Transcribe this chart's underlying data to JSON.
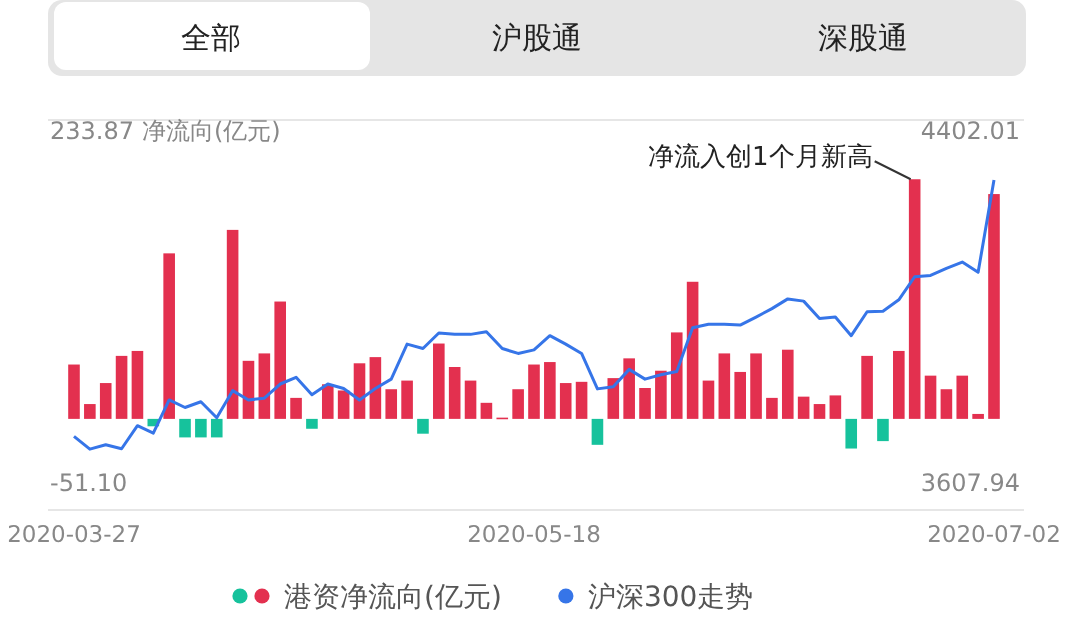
{
  "chart_data": {
    "type": "bar",
    "annotations": [
      "全部",
      "沪股通",
      "深股通",
      "净流入创1个月新高"
    ],
    "ylabel": "净流向(亿元)",
    "categories": [
      "2020-03-27",
      null,
      null,
      null,
      null,
      null,
      null,
      null,
      null,
      null,
      null,
      null,
      null,
      null,
      null,
      null,
      null,
      null,
      null,
      null,
      null,
      null,
      null,
      null,
      null,
      null,
      null,
      null,
      null,
      "2020-05-18",
      null,
      null,
      null,
      null,
      null,
      null,
      null,
      null,
      null,
      null,
      null,
      null,
      null,
      null,
      null,
      null,
      null,
      null,
      null,
      null,
      null,
      null,
      null,
      null,
      null,
      null,
      null,
      null,
      "2020-07-02"
    ],
    "series": [
      {
        "name": "港资净流向(亿元)",
        "values": [
          44,
          12,
          29,
          51,
          55,
          -6,
          134,
          -15,
          -15,
          -15,
          153,
          47,
          53,
          95,
          17,
          -8,
          28,
          23,
          45,
          50,
          24,
          31,
          -12,
          61,
          42,
          31,
          13,
          1,
          24,
          44,
          46,
          29,
          30,
          -21,
          33,
          49,
          25,
          39,
          70,
          111,
          31,
          53,
          38,
          53,
          17,
          56,
          18,
          12,
          19,
          -24,
          51,
          -18,
          55,
          194,
          35,
          24,
          35,
          4,
          182
        ],
        "colors": [
          "#e3304f",
          "#e3304f",
          "#e3304f",
          "#e3304f",
          "#e3304f",
          "#16c29c",
          "#e3304f",
          "#16c29c",
          "#16c29c",
          "#16c29c",
          "#e3304f",
          "#e3304f",
          "#e3304f",
          "#e3304f",
          "#e3304f",
          "#16c29c",
          "#e3304f",
          "#e3304f",
          "#e3304f",
          "#e3304f",
          "#e3304f",
          "#e3304f",
          "#16c29c",
          "#e3304f",
          "#e3304f",
          "#e3304f",
          "#e3304f",
          "#e3304f",
          "#e3304f",
          "#e3304f",
          "#e3304f",
          "#e3304f",
          "#e3304f",
          "#16c29c",
          "#e3304f",
          "#e3304f",
          "#e3304f",
          "#e3304f",
          "#e3304f",
          "#e3304f",
          "#e3304f",
          "#e3304f",
          "#e3304f",
          "#e3304f",
          "#e3304f",
          "#e3304f",
          "#e3304f",
          "#e3304f",
          "#e3304f",
          "#16c29c",
          "#e3304f",
          "#16c29c",
          "#e3304f",
          "#e3304f",
          "#e3304f",
          "#e3304f",
          "#e3304f",
          "#e3304f",
          "#e3304f"
        ]
      },
      {
        "name": "沪深300走势",
        "type": "line",
        "axis": "y2",
        "color": "#3675e8",
        "values": [
          3711,
          3682,
          3692,
          3683,
          3735,
          3718,
          3793,
          3776,
          3789,
          3753,
          3814,
          3793,
          3797,
          3829,
          3844,
          3805,
          3829,
          3819,
          3793,
          3819,
          3840,
          3919,
          3909,
          3944,
          3941,
          3941,
          3947,
          3909,
          3898,
          3906,
          3938,
          3919,
          3898,
          3818,
          3823,
          3862,
          3840,
          3850,
          3857,
          3956,
          3964,
          3964,
          3962,
          3980,
          3999,
          4021,
          4016,
          3977,
          3980,
          3938,
          3992,
          3993,
          4019,
          4071,
          4074,
          4090,
          4104,
          4081,
          4289
        ]
      }
    ],
    "ylim": [
      -51.1,
      233.87
    ],
    "yticks": [
      {
        "value": -51.1,
        "label": "-51.10"
      },
      233.87
    ],
    "y2lim": [
      3607.94,
      4402.01
    ],
    "y2ticks": [
      3607.94,
      4402.01
    ],
    "legend": "bottom"
  }
}
